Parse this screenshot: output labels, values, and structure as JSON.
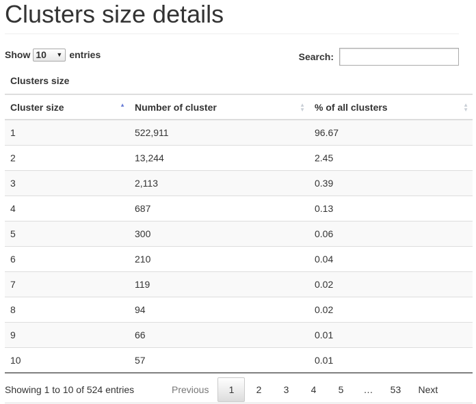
{
  "page_title": "Clusters size details",
  "length_control": {
    "prefix": "Show",
    "selected": "10",
    "suffix": "entries"
  },
  "search": {
    "label": "Search:",
    "value": ""
  },
  "table": {
    "caption": "Clusters size",
    "columns": [
      {
        "label": "Cluster size",
        "sort": "ascending"
      },
      {
        "label": "Number of cluster",
        "sort": "none"
      },
      {
        "label": "% of all clusters",
        "sort": "none"
      }
    ],
    "rows": [
      [
        "1",
        "522,911",
        "96.67"
      ],
      [
        "2",
        "13,244",
        "2.45"
      ],
      [
        "3",
        "2,113",
        "0.39"
      ],
      [
        "4",
        "687",
        "0.13"
      ],
      [
        "5",
        "300",
        "0.06"
      ],
      [
        "6",
        "210",
        "0.04"
      ],
      [
        "7",
        "119",
        "0.02"
      ],
      [
        "8",
        "94",
        "0.02"
      ],
      [
        "9",
        "66",
        "0.01"
      ],
      [
        "10",
        "57",
        "0.01"
      ]
    ]
  },
  "info_text": "Showing 1 to 10 of 524 entries",
  "pagination": {
    "previous": "Previous",
    "pages": [
      "1",
      "2",
      "3",
      "4",
      "5"
    ],
    "current": "1",
    "ellipsis": "…",
    "last": "53",
    "next": "Next"
  },
  "icons": {
    "sort_up": "triangle-up",
    "sort_down": "triangle-down",
    "select_arrow": "triangle-down"
  },
  "colors": {
    "sort_active": "#6b7fd7",
    "sort_inactive": "#c9cfd6",
    "row_stripe": "#f9f9f9"
  }
}
